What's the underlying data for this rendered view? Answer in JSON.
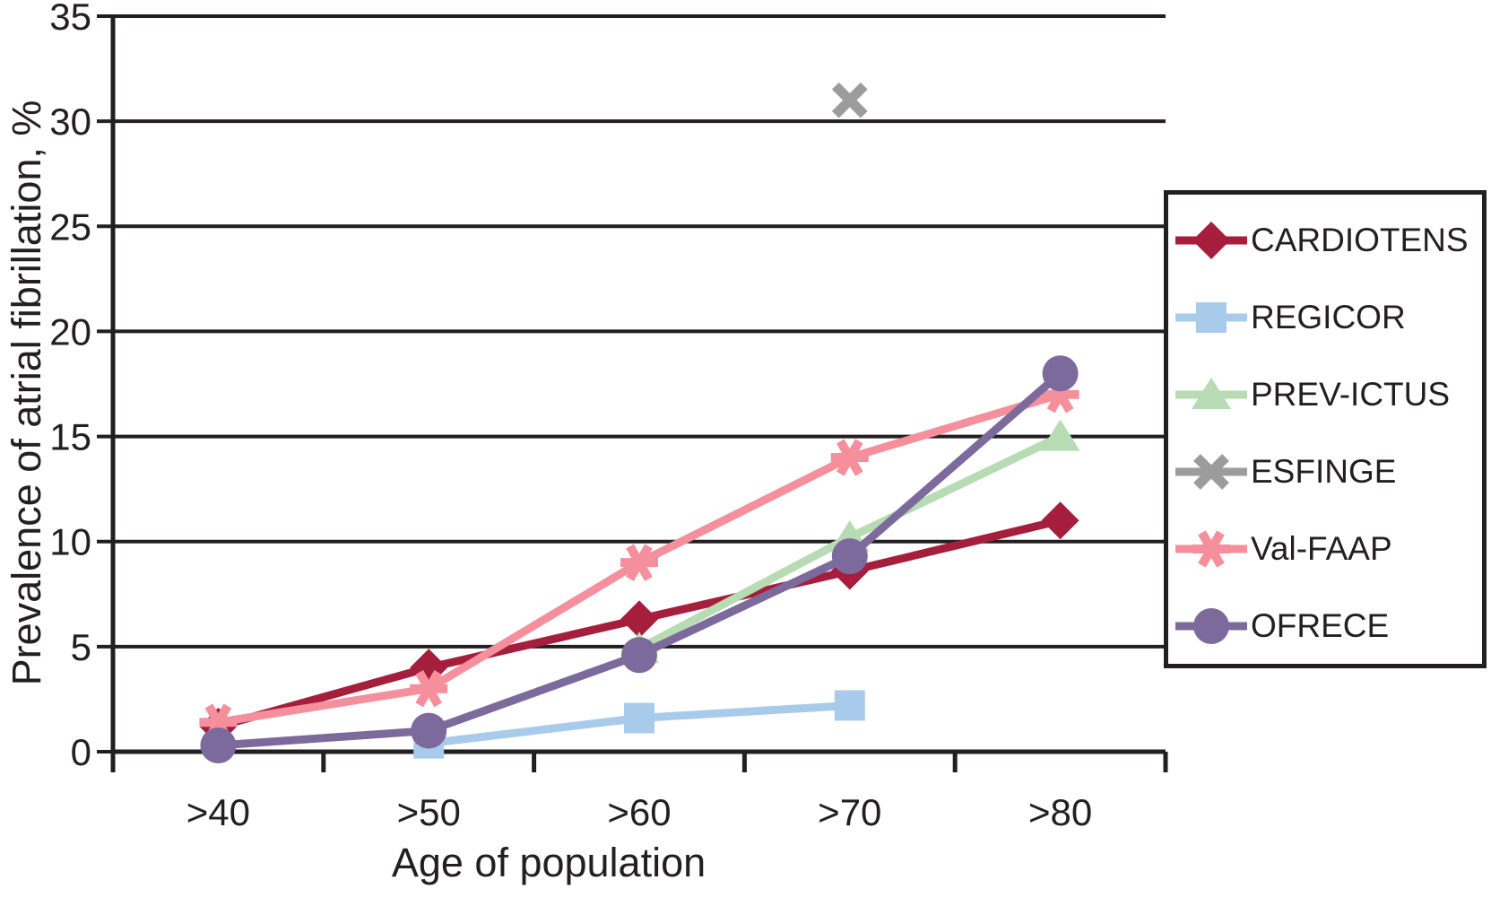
{
  "chart_data": {
    "type": "line",
    "title": "",
    "xlabel": "Age of population",
    "ylabel": "Prevalence of atrial fibrillation, %",
    "categories": [
      ">40",
      ">50",
      ">60",
      ">70",
      ">80"
    ],
    "ylim": [
      0,
      35
    ],
    "yticks": [
      0,
      5,
      10,
      15,
      20,
      25,
      30,
      35
    ],
    "grid": true,
    "legend_position": "right",
    "background_color": "#FFFFFF",
    "axis_color": "#231F20",
    "series": [
      {
        "name": "CARDIOTENS",
        "marker": "diamond",
        "color": "#A51E3C",
        "values": [
          1.2,
          4.0,
          6.3,
          8.6,
          11.0
        ]
      },
      {
        "name": "REGICOR",
        "marker": "square",
        "color": "#A8CBEB",
        "values": [
          null,
          0.4,
          1.6,
          2.2,
          null
        ]
      },
      {
        "name": "PREV-ICTUS",
        "marker": "triangle",
        "color": "#B7DBB2",
        "values": [
          null,
          null,
          4.9,
          10.2,
          15.0
        ]
      },
      {
        "name": "ESFINGE",
        "marker": "x",
        "color": "#9C9C9C",
        "values": [
          null,
          null,
          null,
          31.0,
          null
        ]
      },
      {
        "name": "Val-FAAP",
        "marker": "asterisk",
        "color": "#F48F9B",
        "values": [
          1.4,
          3.0,
          9.0,
          14.0,
          17.0
        ]
      },
      {
        "name": "OFRECE",
        "marker": "circle",
        "color": "#7D6A9D",
        "values": [
          0.3,
          1.0,
          4.6,
          9.3,
          18.0
        ]
      }
    ]
  }
}
